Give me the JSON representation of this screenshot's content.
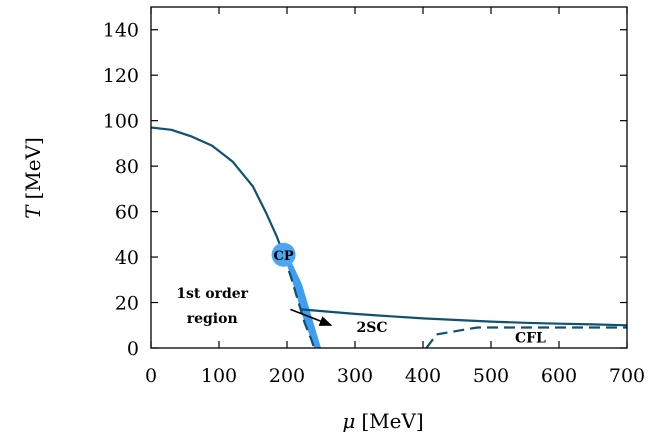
{
  "chart_data": {
    "type": "line",
    "title": "",
    "xlabel_symbol": "μ",
    "xlabel_unit": "[MeV]",
    "ylabel_symbol": "T",
    "ylabel_unit": "[MeV]",
    "xlim": [
      0,
      700
    ],
    "ylim": [
      0,
      150
    ],
    "xticks": [
      0,
      100,
      200,
      300,
      400,
      500,
      600,
      700
    ],
    "yticks": [
      0,
      20,
      40,
      60,
      80,
      100,
      120,
      140
    ],
    "grid": false,
    "colors": {
      "line": "#0e5270",
      "region": "#3f9ef0",
      "cp_marker": "#4da6f2"
    },
    "series": [
      {
        "style": "solid",
        "points": [
          [
            0,
            97
          ],
          [
            30,
            96
          ],
          [
            60,
            93
          ],
          [
            90,
            89
          ],
          [
            120,
            82
          ],
          [
            150,
            71
          ],
          [
            170,
            59
          ],
          [
            185,
            49
          ],
          [
            195,
            41
          ]
        ]
      },
      {
        "style": "solid",
        "points": [
          [
            221,
            17
          ],
          [
            260,
            16
          ],
          [
            300,
            15
          ],
          [
            350,
            14
          ],
          [
            400,
            13
          ],
          [
            450,
            12.3
          ],
          [
            500,
            11.6
          ],
          [
            550,
            11.1
          ],
          [
            600,
            10.7
          ],
          [
            650,
            10.4
          ],
          [
            700,
            10
          ]
        ]
      },
      {
        "style": "dashed",
        "points": [
          [
            195,
            41
          ],
          [
            206,
            31
          ],
          [
            216,
            21
          ],
          [
            226,
            11
          ],
          [
            236,
            3.5
          ],
          [
            240,
            0
          ]
        ]
      },
      {
        "style": "dashed",
        "points": [
          [
            405,
            0
          ],
          [
            420,
            6
          ],
          [
            450,
            7.5
          ],
          [
            480,
            9
          ],
          [
            550,
            9
          ],
          [
            600,
            9
          ],
          [
            650,
            9
          ],
          [
            700,
            9
          ]
        ]
      }
    ],
    "first_order_region": [
      [
        195,
        41
      ],
      [
        206,
        31
      ],
      [
        216,
        21
      ],
      [
        226,
        11
      ],
      [
        236,
        3.5
      ],
      [
        240,
        0
      ],
      [
        250,
        0
      ],
      [
        245,
        5
      ],
      [
        235,
        15
      ],
      [
        222,
        28
      ],
      [
        208,
        37
      ],
      [
        198,
        40
      ]
    ],
    "critical_point": {
      "x": 195,
      "y": 41,
      "label": "CP"
    },
    "annotations": [
      {
        "id": "first-order-label-line1",
        "text": "1st order",
        "x": 90,
        "y": 22
      },
      {
        "id": "first-order-label-line2",
        "text": "region",
        "x": 90,
        "y": 11
      },
      {
        "id": "2sc-label",
        "text": "2SC",
        "x": 325,
        "y": 7
      },
      {
        "id": "cfl-label",
        "text": "CFL",
        "x": 558,
        "y": 2.5
      }
    ],
    "arrow": {
      "from": [
        205,
        17
      ],
      "to": [
        265,
        10
      ]
    }
  }
}
